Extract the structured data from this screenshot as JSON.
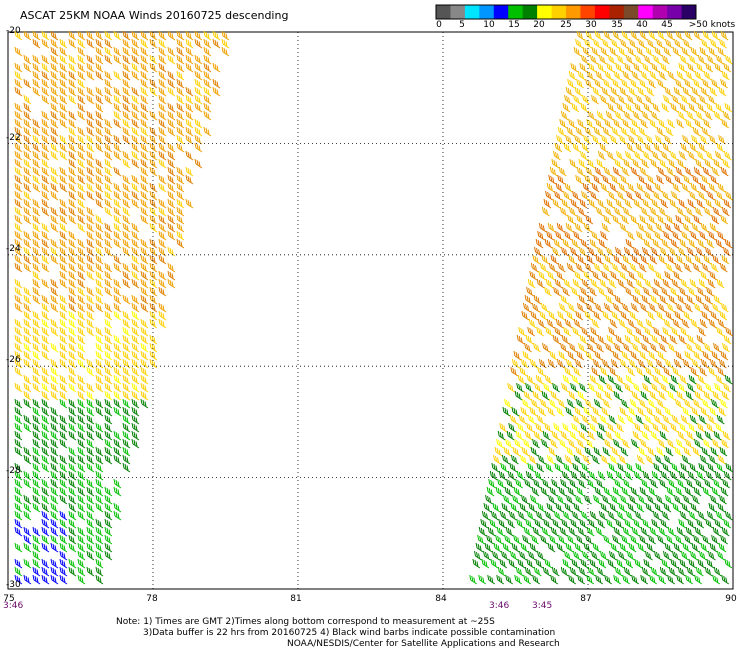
{
  "title": "ASCAT 25KM NOAA Winds 20160725 descending",
  "colorbar": {
    "colors": [
      "#555555",
      "#888888",
      "#00e5ff",
      "#0096ff",
      "#0000ff",
      "#00c000",
      "#008000",
      "#ffff00",
      "#ffd000",
      "#ff9900",
      "#ff4400",
      "#ff0000",
      "#aa2200",
      "#7a4a2a",
      "#ff00ff",
      "#b000b0",
      "#7700aa",
      "#2a0066"
    ],
    "labels": [
      "0",
      "5",
      "10",
      "15",
      "20",
      "25",
      "30",
      "35",
      "40",
      "45",
      ">50 knots"
    ]
  },
  "map": {
    "lat_ticks": [
      "-20",
      "-22",
      "-24",
      "-26",
      "-28",
      "-30"
    ],
    "lon_ticks": [
      "75",
      "78",
      "81",
      "84",
      "87",
      "90"
    ],
    "lat_range": [
      -30,
      -20
    ],
    "lon_range": [
      75,
      90
    ],
    "time_labels": [
      "3:46",
      "3:46",
      "3:45"
    ]
  },
  "notes": {
    "line1": "Note: 1) Times are GMT 2)Times along bottom correspond to measurement at ~25S",
    "line2": "3)Data buffer is 22 hrs from 20160725 4) Black wind barbs indicate possible contamination",
    "line3": "NOAA/NESDIS/Center for Satellite Applications and Research"
  }
}
